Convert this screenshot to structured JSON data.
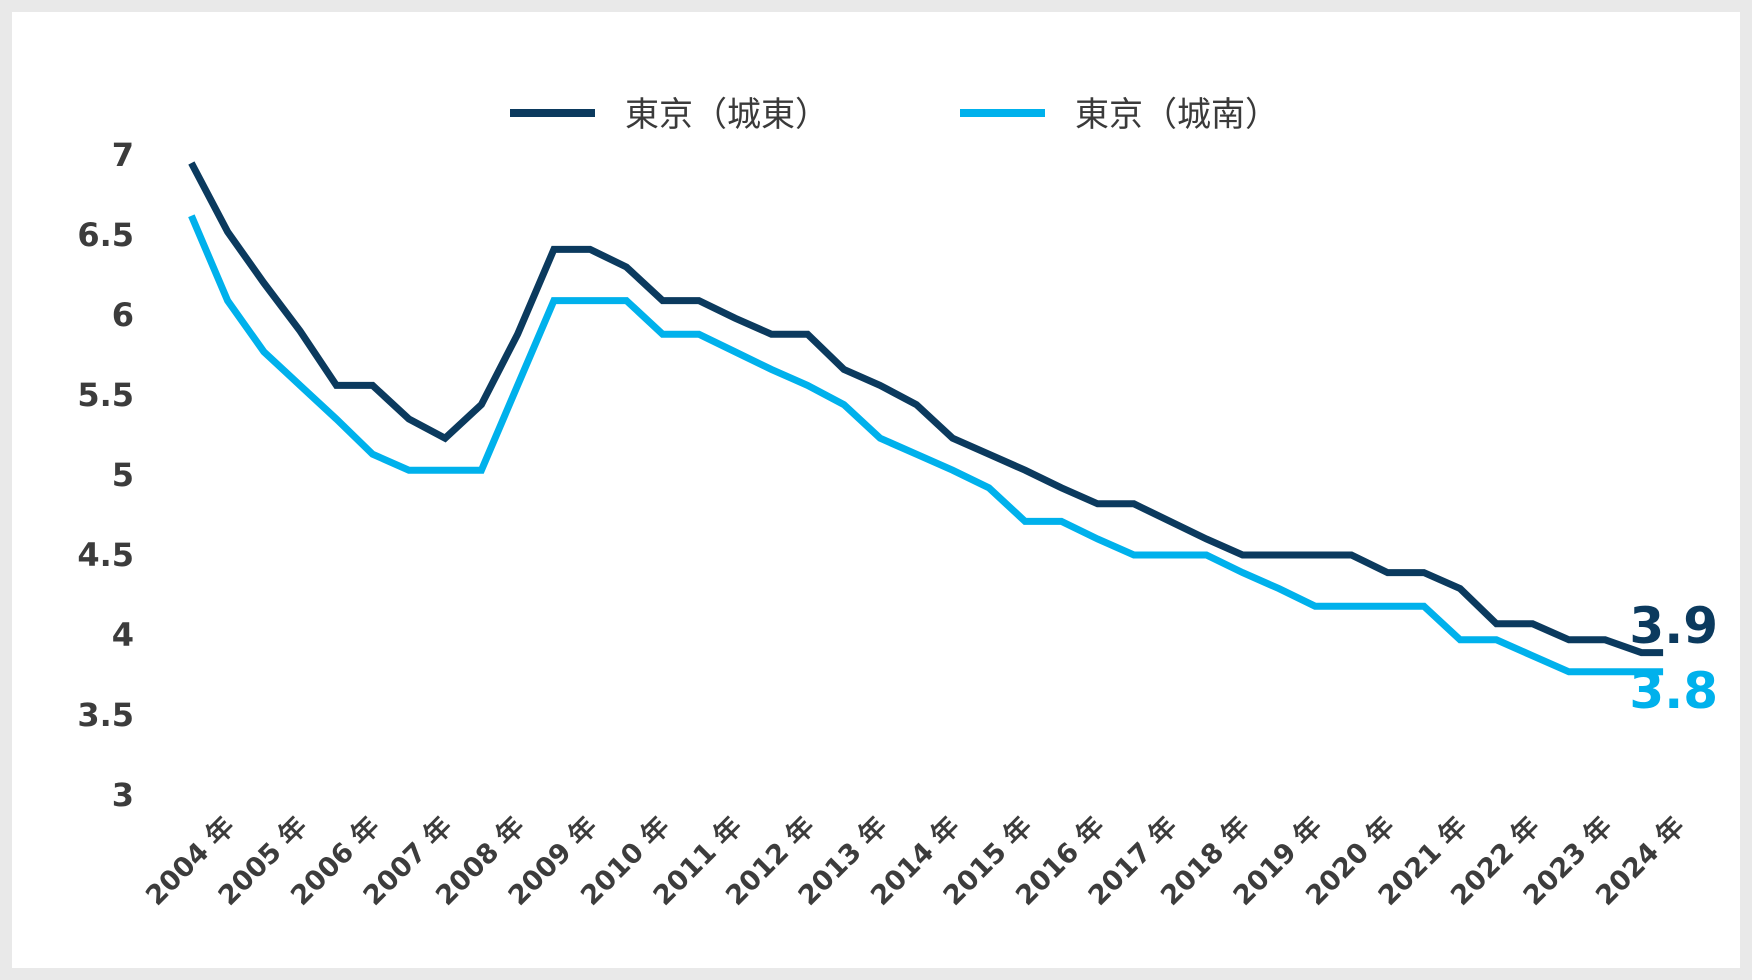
{
  "chart_data": {
    "type": "line",
    "title": "",
    "xlabel": "",
    "ylabel": "",
    "ylim": [
      3,
      7
    ],
    "yticks": [
      "7",
      "6.5",
      "6",
      "5.5",
      "5",
      "4.5",
      "4",
      "3.5",
      "3"
    ],
    "xticks": [
      "2004 年",
      "2005 年",
      "2006 年",
      "2007 年",
      "2008 年",
      "2009 年",
      "2010 年",
      "2011 年",
      "2012 年",
      "2013 年",
      "2014 年",
      "2015 年",
      "2016 年",
      "2017 年",
      "2018 年",
      "2019 年",
      "2020 年",
      "2021 年",
      "2022 年",
      "2023 年",
      "2024 年"
    ],
    "x": [
      2003.95,
      2004.45,
      2004.95,
      2005.45,
      2005.95,
      2006.45,
      2006.95,
      2007.45,
      2007.95,
      2008.45,
      2008.95,
      2009.45,
      2009.95,
      2010.45,
      2010.95,
      2011.45,
      2011.95,
      2012.45,
      2012.95,
      2013.45,
      2013.95,
      2014.45,
      2014.95,
      2015.45,
      2015.95,
      2016.45,
      2016.95,
      2017.45,
      2017.95,
      2018.45,
      2018.95,
      2019.45,
      2019.95,
      2020.45,
      2020.95,
      2021.45,
      2021.95,
      2022.45,
      2022.95,
      2023.45,
      2023.95,
      2024.25
    ],
    "series": [
      {
        "name": "東京（城東）",
        "color": "#0b3a5e",
        "values": [
          6.95,
          6.52,
          6.2,
          5.9,
          5.56,
          5.56,
          5.35,
          5.23,
          5.44,
          5.88,
          6.41,
          6.41,
          6.3,
          6.09,
          6.09,
          5.98,
          5.88,
          5.88,
          5.66,
          5.56,
          5.44,
          5.23,
          5.13,
          5.03,
          4.92,
          4.82,
          4.82,
          4.71,
          4.6,
          4.5,
          4.5,
          4.5,
          4.5,
          4.39,
          4.39,
          4.29,
          4.07,
          4.07,
          3.97,
          3.97,
          3.89,
          3.89
        ],
        "end_label": "3.9"
      },
      {
        "name": "東京（城南）",
        "color": "#00b1ec",
        "values": [
          6.62,
          6.09,
          5.77,
          5.56,
          5.35,
          5.13,
          5.03,
          5.03,
          5.03,
          5.56,
          6.09,
          6.09,
          6.09,
          5.88,
          5.88,
          5.77,
          5.66,
          5.56,
          5.44,
          5.23,
          5.13,
          5.03,
          4.92,
          4.71,
          4.71,
          4.6,
          4.5,
          4.5,
          4.5,
          4.39,
          4.29,
          4.18,
          4.18,
          4.18,
          4.18,
          3.97,
          3.97,
          3.87,
          3.77,
          3.77,
          3.77,
          3.77
        ],
        "end_label": "3.8"
      }
    ],
    "legend_position": "top-center",
    "grid": false
  }
}
